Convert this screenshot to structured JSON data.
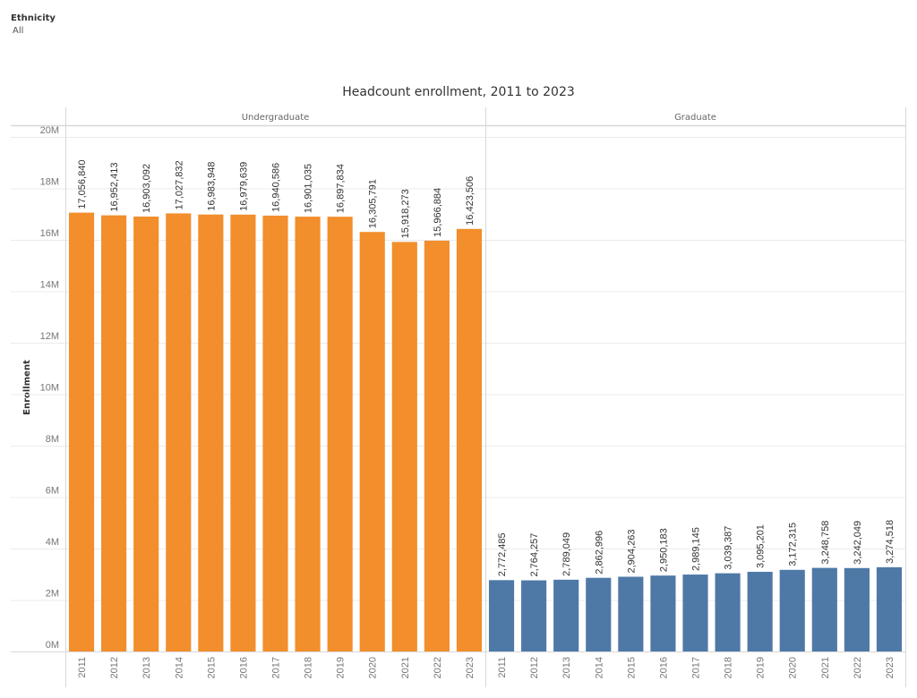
{
  "filter": {
    "label": "Ethnicity",
    "value": "All"
  },
  "colors": {
    "undergraduate": "#F28E2B",
    "graduate": "#4E79A7",
    "grid": "#EBEBEB",
    "divider": "#D8D8D8"
  },
  "chart_data": {
    "type": "bar",
    "title": "Headcount enrollment, 2011 to 2023",
    "xlabel": "",
    "ylabel": "Enrollment",
    "ylim": [
      0,
      20000000
    ],
    "yticks": [
      0,
      2000000,
      4000000,
      6000000,
      8000000,
      10000000,
      12000000,
      14000000,
      16000000,
      18000000,
      20000000
    ],
    "ytick_labels": [
      "0M",
      "2M",
      "4M",
      "6M",
      "8M",
      "10M",
      "12M",
      "14M",
      "16M",
      "18M",
      "20M"
    ],
    "grid": true,
    "categories": [
      "2011",
      "2012",
      "2013",
      "2014",
      "2015",
      "2016",
      "2017",
      "2018",
      "2019",
      "2020",
      "2021",
      "2022",
      "2023"
    ],
    "panels": [
      {
        "name": "Undergraduate",
        "color_key": "undergraduate",
        "values": [
          17056840,
          16952413,
          16903092,
          17027832,
          16983948,
          16979639,
          16940586,
          16901035,
          16897834,
          16305791,
          15918273,
          15966884,
          16423506
        ],
        "labels": [
          "17,056,840",
          "16,952,413",
          "16,903,092",
          "17,027,832",
          "16,983,948",
          "16,979,639",
          "16,940,586",
          "16,901,035",
          "16,897,834",
          "16,305,791",
          "15,918,273",
          "15,966,884",
          "16,423,506"
        ]
      },
      {
        "name": "Graduate",
        "color_key": "graduate",
        "values": [
          2772485,
          2764257,
          2789049,
          2862996,
          2904263,
          2950183,
          2989145,
          3039387,
          3095201,
          3172315,
          3248758,
          3242049,
          3274518
        ],
        "labels": [
          "2,772,485",
          "2,764,257",
          "2,789,049",
          "2,862,996",
          "2,904,263",
          "2,950,183",
          "2,989,145",
          "3,039,387",
          "3,095,201",
          "3,172,315",
          "3,248,758",
          "3,242,049",
          "3,274,518"
        ]
      }
    ]
  }
}
